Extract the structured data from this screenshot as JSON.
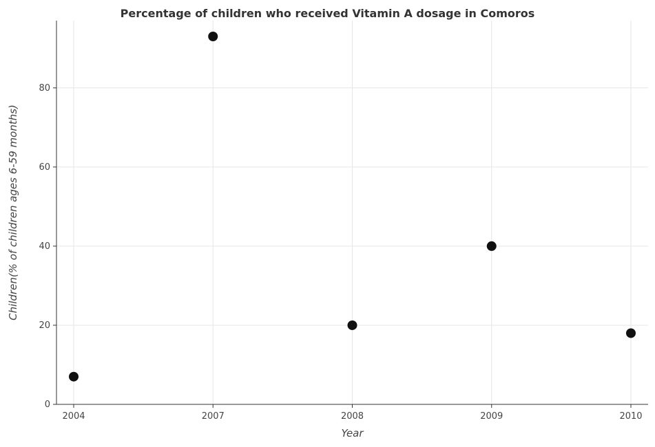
{
  "chart_data": {
    "type": "scatter",
    "title": "Percentage of children who received Vitamin A dosage in Comoros",
    "xlabel": "Year",
    "ylabel": "Children(% of children ages 6-59 months)",
    "categories": [
      "2004",
      "2007",
      "2008",
      "2009",
      "2010"
    ],
    "values": [
      7,
      93,
      20,
      40,
      18
    ],
    "ylim": [
      0,
      97
    ],
    "yticks": [
      0,
      20,
      40,
      60,
      80
    ],
    "grid": true,
    "marker_color": "#111111"
  }
}
